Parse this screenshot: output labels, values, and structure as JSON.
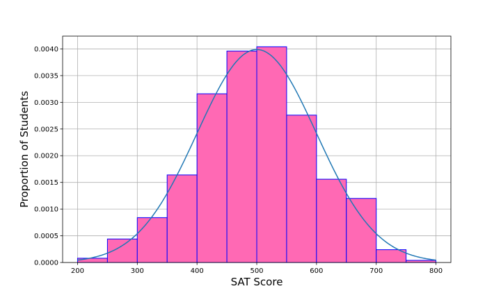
{
  "chart_data": {
    "type": "bar",
    "subtype": "histogram-with-density-curve",
    "title": "",
    "xlabel": "SAT Score",
    "ylabel": "Proportion of Students",
    "xlim": [
      175,
      825
    ],
    "ylim": [
      0,
      0.00424
    ],
    "x_ticks": [
      200,
      300,
      400,
      500,
      600,
      700,
      800
    ],
    "y_ticks": [
      0.0,
      0.0005,
      0.001,
      0.0015,
      0.002,
      0.0025,
      0.003,
      0.0035,
      0.004
    ],
    "y_tick_labels": [
      "0.0000",
      "0.0005",
      "0.0010",
      "0.0015",
      "0.0020",
      "0.0025",
      "0.0030",
      "0.0035",
      "0.0040"
    ],
    "grid": true,
    "bins": [
      {
        "start": 200,
        "end": 250,
        "value": 8e-05
      },
      {
        "start": 250,
        "end": 300,
        "value": 0.00044
      },
      {
        "start": 300,
        "end": 350,
        "value": 0.00084
      },
      {
        "start": 350,
        "end": 400,
        "value": 0.00164
      },
      {
        "start": 400,
        "end": 450,
        "value": 0.00316
      },
      {
        "start": 450,
        "end": 500,
        "value": 0.00396
      },
      {
        "start": 500,
        "end": 550,
        "value": 0.00404
      },
      {
        "start": 550,
        "end": 600,
        "value": 0.00276
      },
      {
        "start": 600,
        "end": 650,
        "value": 0.00156
      },
      {
        "start": 650,
        "end": 700,
        "value": 0.0012
      },
      {
        "start": 700,
        "end": 750,
        "value": 0.00024
      },
      {
        "start": 750,
        "end": 800,
        "value": 4e-05
      }
    ],
    "curve": {
      "type": "normal-density",
      "mean": 500,
      "std": 100,
      "x_range": [
        200,
        800
      ]
    },
    "colors": {
      "bar_fill": "#ff69b4",
      "bar_edge": "#0000ff",
      "curve": "#1f77b4",
      "grid": "#b0b0b0",
      "axes": "#000000"
    }
  }
}
